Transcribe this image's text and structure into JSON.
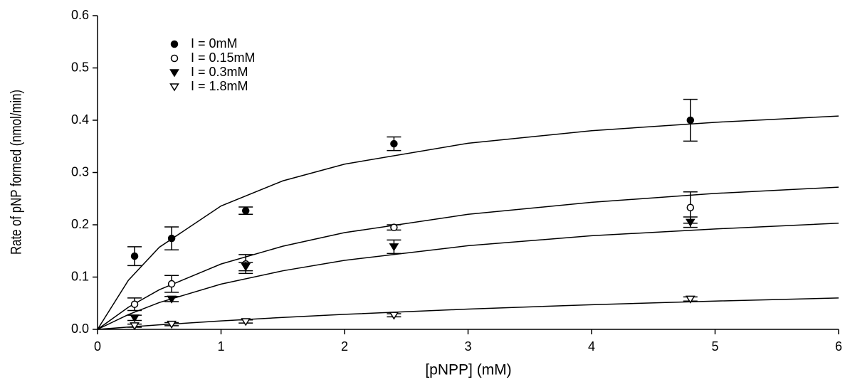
{
  "chart_data": {
    "type": "scatter",
    "x_label": "[pNPP] (mM)",
    "y_label": "Rate of pNP formed (nmol/min)",
    "xlim": [
      0,
      6
    ],
    "ylim": [
      0,
      0.6
    ],
    "xticks": [
      0,
      1,
      2,
      3,
      4,
      5,
      6
    ],
    "yticks": [
      {
        "value": 0,
        "label": "0.0"
      },
      0.1,
      0.2,
      0.3,
      0.4,
      0.5,
      0.6
    ],
    "legend": "upper-left",
    "x": [
      0.3,
      0.6,
      1.2,
      2.4,
      4.8
    ],
    "series": [
      {
        "name": "I = 0mM",
        "marker": "circle",
        "filled": true,
        "color": "#000000",
        "values": [
          0.14,
          0.174,
          0.227,
          0.355,
          0.4
        ],
        "errors": [
          0.018,
          0.022,
          0.007,
          0.013,
          0.04
        ],
        "fit": {
          "x": [
            0,
            0.25,
            0.5,
            1,
            1.5,
            2,
            3,
            4,
            5,
            6
          ],
          "values": [
            0,
            0.0939,
            0.157,
            0.236,
            0.284,
            0.316,
            0.356,
            0.38,
            0.396,
            0.408
          ]
        }
      },
      {
        "name": "I = 0.15mM",
        "marker": "circle",
        "filled": false,
        "color": "#000000",
        "values": [
          0.048,
          0.087,
          0.125,
          0.195,
          0.233
        ],
        "errors": [
          0.012,
          0.016,
          0.018,
          0.005,
          0.03
        ],
        "fit": {
          "x": [
            0,
            0.25,
            0.5,
            1,
            1.5,
            2,
            3,
            4,
            5,
            6
          ],
          "values": [
            0,
            0.0424,
            0.0757,
            0.125,
            0.159,
            0.185,
            0.22,
            0.243,
            0.26,
            0.272
          ]
        }
      },
      {
        "name": "I = 0.3mM",
        "marker": "triangle-down",
        "filled": true,
        "color": "#000000",
        "values": [
          0.022,
          0.058,
          0.12,
          0.158,
          0.205
        ],
        "errors": [
          0.005,
          0.005,
          0.008,
          0.013,
          0.01
        ],
        "fit": {
          "x": [
            0,
            0.25,
            0.5,
            1,
            1.5,
            2,
            3,
            4,
            5,
            6
          ],
          "values": [
            0,
            0.0283,
            0.0513,
            0.0866,
            0.112,
            0.132,
            0.16,
            0.179,
            0.192,
            0.203
          ]
        }
      },
      {
        "name": "I = 1.8mM",
        "marker": "triangle-down",
        "filled": false,
        "color": "#000000",
        "values": [
          0.007,
          0.01,
          0.015,
          0.027,
          0.058
        ],
        "errors": [
          0.003,
          0.003,
          0.003,
          0.003,
          0.004
        ],
        "fit": {
          "x": [
            0,
            0.25,
            0.5,
            1,
            1.5,
            2,
            3,
            4,
            5,
            6
          ],
          "values": [
            0,
            0.0044,
            0.0086,
            0.0161,
            0.0228,
            0.0287,
            0.0388,
            0.0471,
            0.0541,
            0.06
          ]
        }
      }
    ]
  }
}
